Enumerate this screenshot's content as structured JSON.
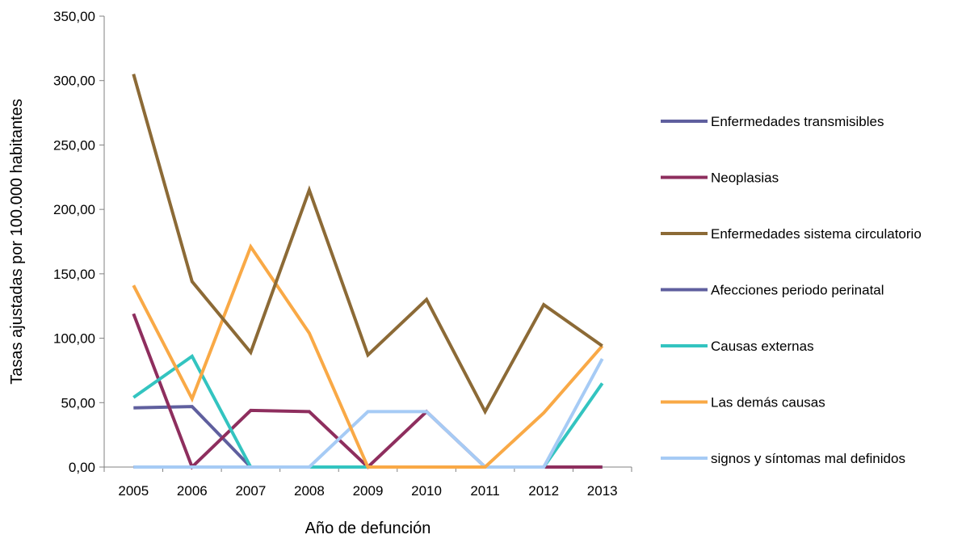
{
  "chart_data": {
    "type": "line",
    "title": "",
    "xlabel": "Año de defunción",
    "ylabel": "Tasas ajustadas por 100.000 habitantes",
    "x": [
      "2005",
      "2006",
      "2007",
      "2008",
      "2009",
      "2010",
      "2011",
      "2012",
      "2013"
    ],
    "ylim": [
      0,
      350
    ],
    "yticks": [
      "0,00",
      "50,00",
      "100,00",
      "150,00",
      "200,00",
      "250,00",
      "300,00",
      "350,00"
    ],
    "grid": false,
    "legend_position": "right",
    "series": [
      {
        "name": "Enfermedades transmisibles",
        "color": "#5f5f9e",
        "values": [
          46,
          47,
          0,
          0,
          0,
          0,
          0,
          0,
          0
        ]
      },
      {
        "name": "Neoplasias",
        "color": "#8e2e5e",
        "values": [
          119,
          0,
          44,
          43,
          0,
          43,
          0,
          0,
          0
        ]
      },
      {
        "name": "Enfermedades sistema circulatorio",
        "color": "#8c6a36",
        "values": [
          305,
          144,
          89,
          215,
          87,
          130,
          43,
          126,
          94
        ]
      },
      {
        "name": "Afecciones periodo perinatal",
        "color": "#5f5f9e",
        "values": [
          0,
          0,
          0,
          0,
          0,
          0,
          0,
          0,
          0
        ]
      },
      {
        "name": "Causas externas",
        "color": "#33c4c0",
        "values": [
          54,
          86,
          0,
          0,
          0,
          0,
          0,
          0,
          65
        ]
      },
      {
        "name": "Las demás causas",
        "color": "#f9a946",
        "values": [
          141,
          53,
          171,
          104,
          0,
          0,
          0,
          42,
          94
        ]
      },
      {
        "name": "signos y síntomas mal definidos",
        "color": "#a6cbf5",
        "values": [
          0,
          0,
          0,
          0,
          43,
          43,
          0,
          0,
          84
        ]
      }
    ]
  }
}
